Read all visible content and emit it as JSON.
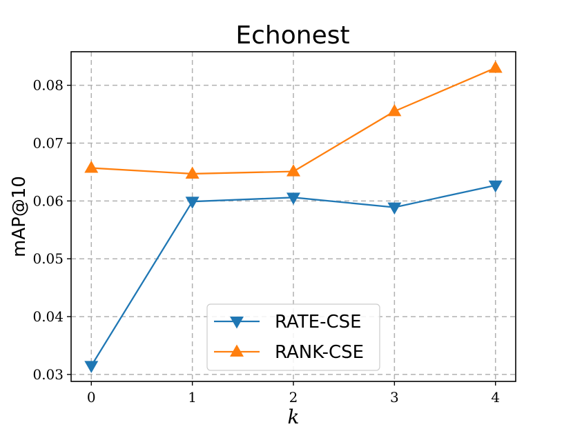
{
  "chart_data": {
    "type": "line",
    "title": "Echonest",
    "xlabel": "k",
    "ylabel": "mAP@10",
    "x": [
      0,
      1,
      2,
      3,
      4
    ],
    "x_tick_labels": [
      "0",
      "1",
      "2",
      "3",
      "4"
    ],
    "y_ticks": [
      0.03,
      0.04,
      0.05,
      0.06,
      0.07,
      0.08
    ],
    "y_tick_labels": [
      "0.03",
      "0.04",
      "0.05",
      "0.06",
      "0.07",
      "0.08"
    ],
    "xlim": [
      -0.2,
      4.2
    ],
    "ylim": [
      0.0288,
      0.0858
    ],
    "grid": true,
    "legend_position": "lower-center",
    "series": [
      {
        "name": "RATE-CSE",
        "color": "#1f77b4",
        "marker": "triangle-down",
        "values": [
          0.0315,
          0.0599,
          0.0606,
          0.0589,
          0.0627
        ]
      },
      {
        "name": "RANK-CSE",
        "color": "#ff7f0e",
        "marker": "triangle-up",
        "values": [
          0.0657,
          0.0647,
          0.0651,
          0.0755,
          0.083
        ]
      }
    ]
  }
}
